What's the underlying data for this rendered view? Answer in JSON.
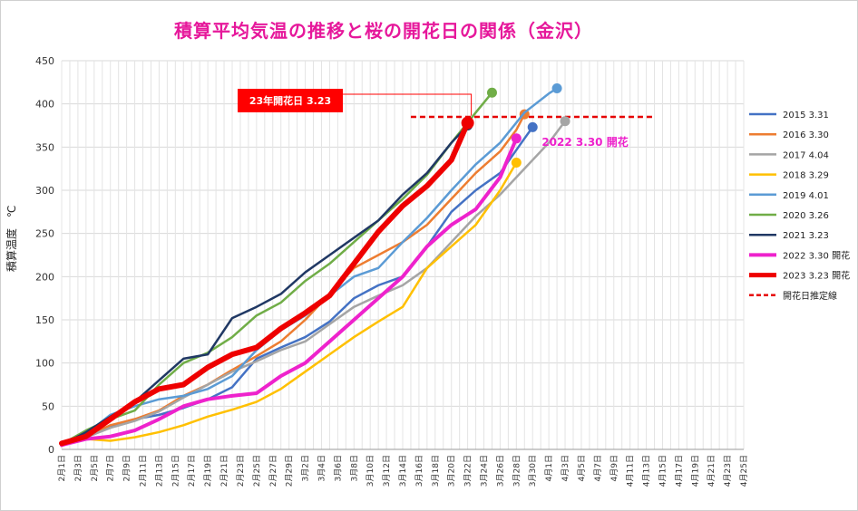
{
  "chart_data": {
    "type": "line",
    "title": "積算平均気温の推移と桜の開花日の関係（金沢）",
    "ylabel": "積算温度　℃",
    "ylim": [
      0,
      450
    ],
    "yticks": [
      0,
      50,
      100,
      150,
      200,
      250,
      300,
      350,
      400,
      450
    ],
    "xtick_labels": [
      "2月1日",
      "2月3日",
      "2月5日",
      "2月7日",
      "2月9日",
      "2月11日",
      "2月13日",
      "2月15日",
      "2月17日",
      "2月19日",
      "2月21日",
      "2月23日",
      "2月25日",
      "2月27日",
      "2月29日",
      "3月2日",
      "3月4日",
      "3月6日",
      "3月8日",
      "3月10日",
      "3月12日",
      "3月14日",
      "3月16日",
      "3月18日",
      "3月20日",
      "3月22日",
      "3月24日",
      "3月26日",
      "3月28日",
      "3月30日",
      "4月1日",
      "4月3日",
      "4月5日",
      "4月7日",
      "4月9日",
      "4月11日",
      "4月13日",
      "4月15日",
      "4月17日",
      "4月19日",
      "4月21日",
      "4月23日",
      "4月25日"
    ],
    "x_unit": "days from 2月1日",
    "grid": "vertical",
    "legend_position": "right",
    "series": [
      {
        "name": "2015 3.31",
        "color": "#4472c4",
        "width": 2.5,
        "x": [
          0,
          3,
          6,
          9,
          12,
          15,
          18,
          21,
          24,
          27,
          30,
          33,
          36,
          39,
          42,
          45,
          48,
          51,
          54,
          57,
          58
        ],
        "y": [
          5,
          15,
          27,
          35,
          40,
          48,
          58,
          72,
          105,
          118,
          130,
          148,
          175,
          190,
          200,
          235,
          275,
          300,
          320,
          360,
          373
        ]
      },
      {
        "name": "2016 3.30",
        "color": "#ed7d31",
        "width": 2.5,
        "x": [
          0,
          3,
          6,
          9,
          12,
          15,
          18,
          21,
          24,
          27,
          30,
          33,
          36,
          39,
          42,
          45,
          48,
          51,
          54,
          56,
          57
        ],
        "y": [
          4,
          15,
          28,
          35,
          45,
          62,
          75,
          92,
          108,
          125,
          150,
          180,
          210,
          225,
          240,
          260,
          290,
          320,
          345,
          370,
          388
        ]
      },
      {
        "name": "2017 4.04",
        "color": "#a5a5a5",
        "width": 2.5,
        "x": [
          0,
          3,
          6,
          9,
          12,
          15,
          18,
          21,
          24,
          27,
          30,
          33,
          36,
          39,
          42,
          45,
          48,
          51,
          54,
          57,
          60,
          62
        ],
        "y": [
          5,
          14,
          25,
          33,
          44,
          60,
          75,
          90,
          102,
          115,
          125,
          145,
          165,
          178,
          190,
          210,
          240,
          270,
          295,
          325,
          355,
          380
        ]
      },
      {
        "name": "2018 3.29",
        "color": "#ffc000",
        "width": 2.5,
        "x": [
          0,
          3,
          6,
          9,
          12,
          15,
          18,
          21,
          24,
          27,
          30,
          33,
          36,
          39,
          42,
          45,
          48,
          51,
          54,
          56
        ],
        "y": [
          5,
          12,
          10,
          14,
          20,
          28,
          38,
          46,
          55,
          70,
          90,
          110,
          130,
          148,
          165,
          210,
          235,
          260,
          300,
          332
        ]
      },
      {
        "name": "2019 4.01",
        "color": "#5b9bd5",
        "width": 2.5,
        "x": [
          0,
          3,
          6,
          9,
          12,
          15,
          18,
          21,
          24,
          27,
          30,
          33,
          36,
          39,
          42,
          45,
          48,
          51,
          54,
          57,
          60,
          61
        ],
        "y": [
          5,
          18,
          40,
          50,
          58,
          62,
          70,
          85,
          115,
          138,
          155,
          178,
          200,
          210,
          240,
          268,
          300,
          330,
          355,
          390,
          412,
          418
        ]
      },
      {
        "name": "2020 3.26",
        "color": "#70ad47",
        "width": 2.5,
        "x": [
          0,
          3,
          6,
          9,
          12,
          15,
          18,
          21,
          24,
          27,
          30,
          33,
          36,
          39,
          42,
          45,
          48,
          51,
          53
        ],
        "y": [
          6,
          22,
          35,
          45,
          75,
          100,
          112,
          130,
          155,
          170,
          195,
          215,
          240,
          265,
          290,
          318,
          355,
          390,
          413
        ]
      },
      {
        "name": "2021 3.23",
        "color": "#203864",
        "width": 2.5,
        "x": [
          0,
          3,
          6,
          9,
          12,
          15,
          18,
          21,
          24,
          27,
          30,
          33,
          36,
          39,
          42,
          45,
          48,
          50
        ],
        "y": [
          5,
          20,
          38,
          55,
          80,
          105,
          110,
          152,
          165,
          180,
          205,
          225,
          245,
          265,
          295,
          320,
          355,
          375
        ]
      },
      {
        "name": "2022 3.30 開花",
        "color": "#ee22cc",
        "width": 4,
        "x": [
          0,
          3,
          6,
          9,
          12,
          15,
          18,
          21,
          24,
          27,
          30,
          33,
          36,
          39,
          42,
          45,
          48,
          51,
          54,
          56
        ],
        "y": [
          5,
          12,
          15,
          22,
          35,
          50,
          58,
          62,
          65,
          85,
          100,
          125,
          150,
          175,
          200,
          235,
          260,
          278,
          315,
          360
        ]
      },
      {
        "name": "2023 3.23 開花",
        "color": "#ee0000",
        "width": 6,
        "x": [
          0,
          3,
          6,
          9,
          12,
          15,
          18,
          21,
          24,
          27,
          30,
          33,
          36,
          39,
          42,
          45,
          48,
          50
        ],
        "y": [
          7,
          15,
          35,
          55,
          70,
          75,
          95,
          110,
          118,
          140,
          158,
          178,
          215,
          252,
          282,
          305,
          335,
          378
        ]
      }
    ],
    "threshold": {
      "name": "開花日推定線",
      "y": 385,
      "x_start": 43,
      "x_end": 73,
      "color": "#e60000"
    },
    "annotations": [
      {
        "text": "23年開花日 3.23",
        "x": 50,
        "y": 378,
        "box_color": "#ff0000",
        "text_color": "#ffffff"
      },
      {
        "text": "2022 3.30 開花",
        "x": 56,
        "y": 360,
        "color": "#ee22cc"
      }
    ]
  }
}
